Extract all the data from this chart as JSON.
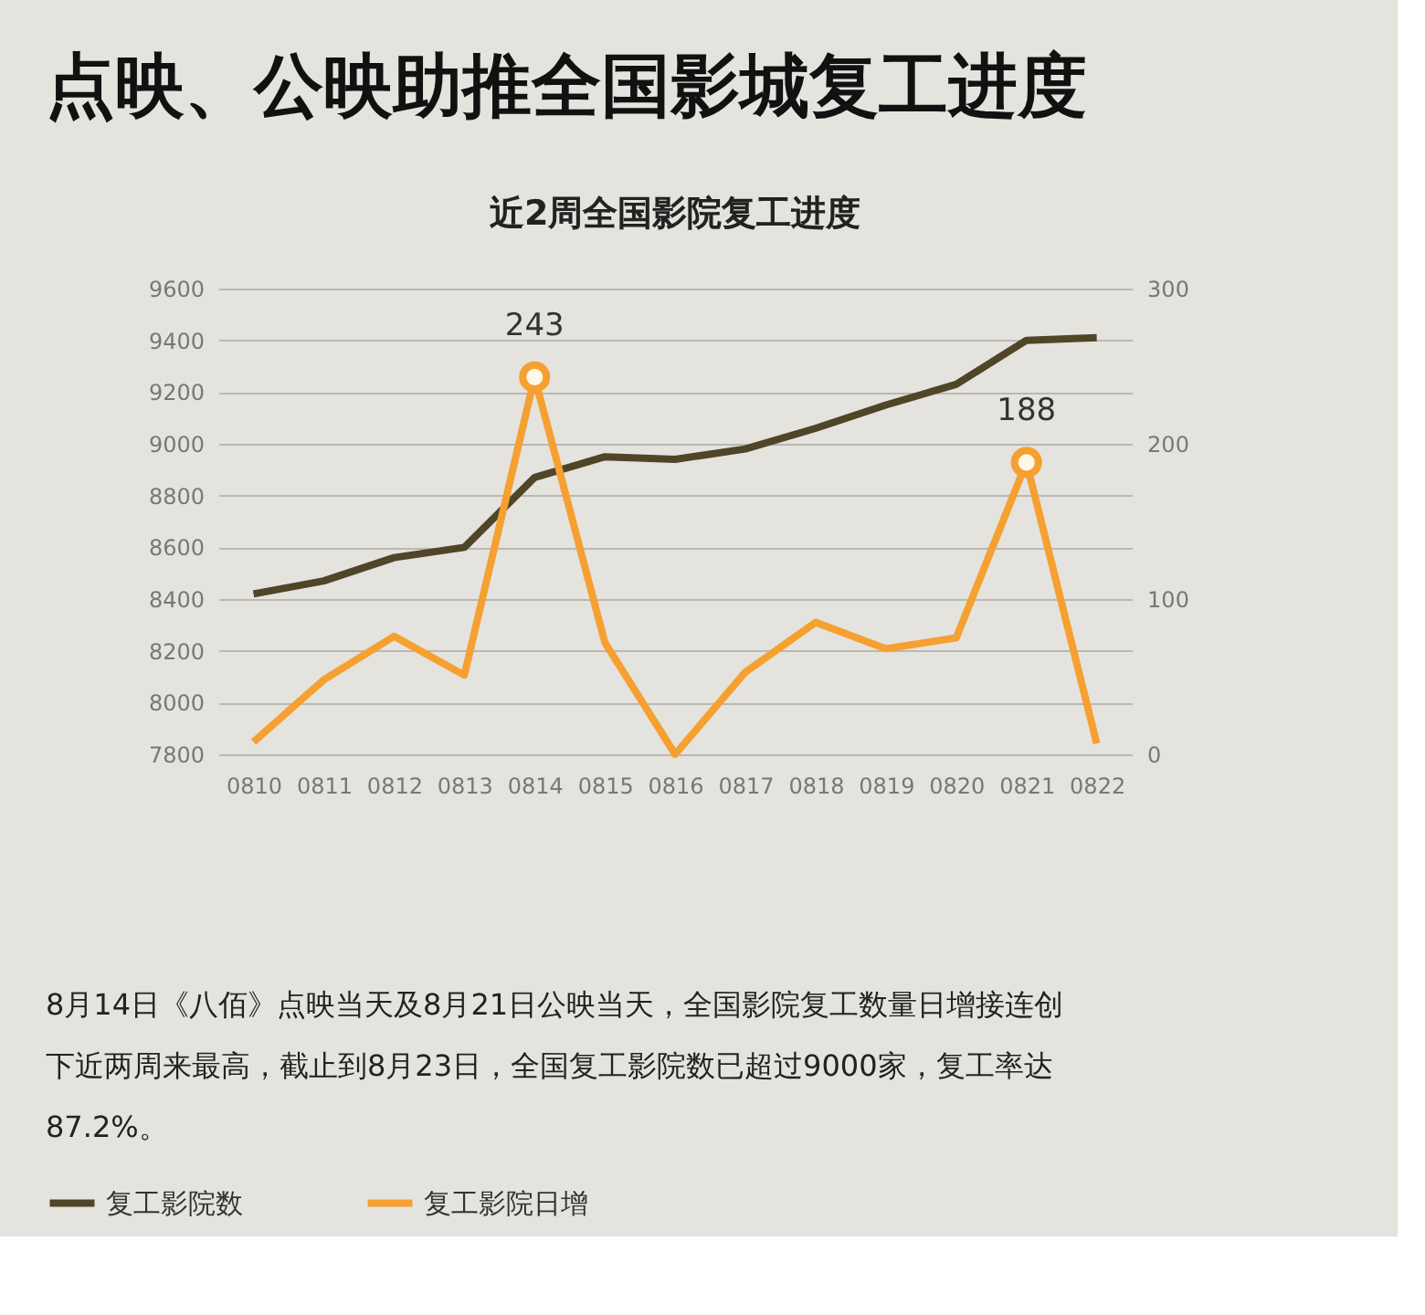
{
  "chart_data": {
    "type": "line",
    "title": "点映、公映助推全国影城复工进度",
    "subtitle": "近2周全国影院复工进度",
    "categories": [
      "0810",
      "0811",
      "0812",
      "0813",
      "0814",
      "0815",
      "0816",
      "0817",
      "0818",
      "0819",
      "0820",
      "0821",
      "0822"
    ],
    "series": [
      {
        "name": "复工影院数",
        "color": "#4f4527",
        "values": [
          8420,
          8470,
          8560,
          8600,
          8870,
          8950,
          8940,
          8980,
          9060,
          9150,
          9230,
          9400,
          9410
        ]
      },
      {
        "name": "复工影院日增",
        "color": "#f5a030",
        "axis": "y2",
        "values": [
          8,
          48,
          76,
          51,
          243,
          72,
          0,
          53,
          85,
          68,
          75,
          188,
          7
        ],
        "value_labels": [
          null,
          null,
          null,
          null,
          "243",
          null,
          null,
          null,
          null,
          null,
          null,
          "188",
          null
        ]
      }
    ],
    "ylim": [
      7800,
      9600
    ],
    "yticks": [
      7800,
      8000,
      8200,
      8400,
      8600,
      8800,
      9000,
      9200,
      9400,
      9600
    ],
    "y2lim": [
      0,
      300
    ],
    "y2ticks": [
      0,
      100,
      200,
      300
    ],
    "grid": "y",
    "legend": "bottom",
    "marker": "none",
    "line_style": "solid",
    "annotations": [
      "8月14日《八佰》点映当天及8月21日公映当天，全国影院复工数量日增接连创下近两周来最高，截止到8月23日，全国复工影院数已超过9000家，复工率达87.2%。"
    ]
  }
}
